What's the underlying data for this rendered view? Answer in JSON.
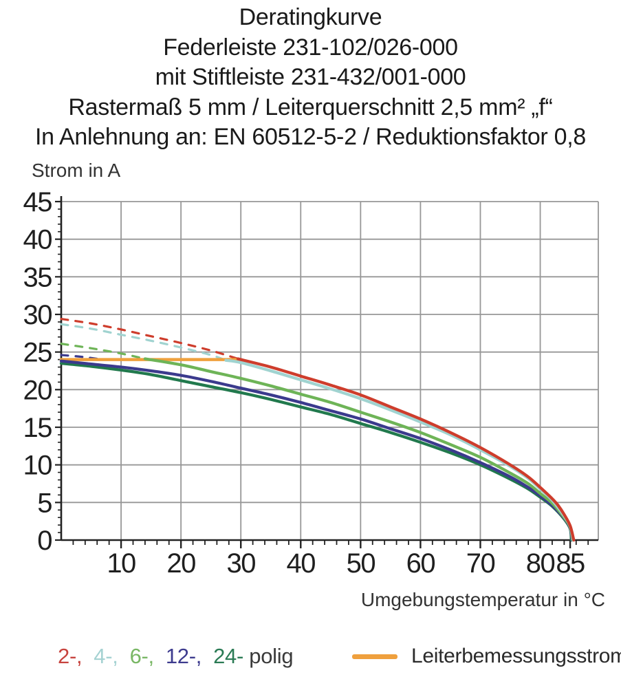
{
  "title": {
    "lines": [
      "Deratingkurve",
      "Federleiste 231-102/026-000",
      "mit Stiftleiste 231-432/001-000",
      "Rastermaß 5 mm / Leiterquerschnitt 2,5 mm² „f“",
      "In Anlehnung an: EN 60512-5-2 / Reduktionsfaktor 0,8"
    ]
  },
  "chart_data": {
    "type": "line",
    "ylabel": "Strom in A",
    "xlabel": "Umgebungstemperatur in °C",
    "xlim": [
      0,
      89.7
    ],
    "ylim": [
      0,
      45
    ],
    "x_ticks": [
      10,
      20,
      30,
      40,
      50,
      60,
      70,
      80,
      85
    ],
    "x_gridlines": [
      10,
      20,
      30,
      40,
      50,
      60,
      70,
      80
    ],
    "x_minor_step": 2,
    "y_ticks": [
      0,
      5,
      10,
      15,
      20,
      25,
      30,
      35,
      40,
      45
    ],
    "y_gridlines": [
      5,
      10,
      15,
      20,
      25,
      30,
      35,
      40,
      45
    ],
    "y_minor_step": 1,
    "grid_color": "#979797",
    "axis_color": "#222222",
    "reference_line": {
      "name": "Leiterbemessungsstrom",
      "color": "#efa03d",
      "current_a": 24,
      "points": [
        [
          0,
          24
        ],
        [
          29.5,
          24
        ]
      ]
    },
    "series": [
      {
        "name": "24-polig",
        "color": "#21794d",
        "solid": [
          [
            0,
            23.5
          ],
          [
            5,
            23.1
          ],
          [
            10,
            22.6
          ],
          [
            15,
            22.0
          ],
          [
            20,
            21.2
          ],
          [
            25,
            20.4
          ],
          [
            30,
            19.6
          ],
          [
            35,
            18.7
          ],
          [
            40,
            17.7
          ],
          [
            45,
            16.7
          ],
          [
            50,
            15.5
          ],
          [
            55,
            14.3
          ],
          [
            60,
            13.0
          ],
          [
            65,
            11.6
          ],
          [
            70,
            10.0
          ],
          [
            75,
            8.1
          ],
          [
            78,
            6.8
          ],
          [
            80,
            5.7
          ],
          [
            82,
            4.5
          ],
          [
            84,
            2.8
          ],
          [
            85,
            1.5
          ],
          [
            85.2,
            0
          ]
        ]
      },
      {
        "name": "12-polig",
        "color": "#3b3a8d",
        "dashed": [
          [
            0,
            24.6
          ],
          [
            3,
            24.4
          ],
          [
            6,
            24.1
          ]
        ],
        "solid": [
          [
            0,
            23.8
          ],
          [
            5,
            23.4
          ],
          [
            10,
            23.0
          ],
          [
            15,
            22.5
          ],
          [
            20,
            21.9
          ],
          [
            25,
            21.1
          ],
          [
            30,
            20.2
          ],
          [
            35,
            19.3
          ],
          [
            40,
            18.3
          ],
          [
            45,
            17.2
          ],
          [
            50,
            16.1
          ],
          [
            55,
            14.8
          ],
          [
            60,
            13.5
          ],
          [
            65,
            12.0
          ],
          [
            70,
            10.3
          ],
          [
            75,
            8.4
          ],
          [
            78,
            7.0
          ],
          [
            80,
            5.9
          ],
          [
            82,
            4.6
          ],
          [
            84,
            2.9
          ],
          [
            85,
            1.6
          ],
          [
            85.3,
            0
          ]
        ]
      },
      {
        "name": "6-polig",
        "color": "#6eb457",
        "dashed": [
          [
            0,
            26.1
          ],
          [
            5,
            25.5
          ],
          [
            10,
            24.8
          ],
          [
            14,
            24.1
          ]
        ],
        "solid": [
          [
            14,
            24.1
          ],
          [
            20,
            23.3
          ],
          [
            25,
            22.4
          ],
          [
            30,
            21.5
          ],
          [
            35,
            20.5
          ],
          [
            40,
            19.4
          ],
          [
            45,
            18.3
          ],
          [
            50,
            17.0
          ],
          [
            55,
            15.7
          ],
          [
            60,
            14.3
          ],
          [
            65,
            12.7
          ],
          [
            70,
            11.0
          ],
          [
            75,
            8.9
          ],
          [
            78,
            7.5
          ],
          [
            80,
            6.2
          ],
          [
            82,
            4.9
          ],
          [
            84,
            3.0
          ],
          [
            85,
            1.7
          ],
          [
            85.4,
            0
          ]
        ]
      },
      {
        "name": "4-polig",
        "color": "#a0d3d0",
        "dashed": [
          [
            0,
            28.7
          ],
          [
            5,
            28.1
          ],
          [
            10,
            27.3
          ],
          [
            15,
            26.5
          ],
          [
            20,
            25.6
          ],
          [
            25,
            24.6
          ],
          [
            27.5,
            23.9
          ]
        ],
        "solid": [
          [
            27.5,
            23.9
          ],
          [
            30,
            23.6
          ],
          [
            35,
            22.5
          ],
          [
            40,
            21.3
          ],
          [
            45,
            20.1
          ],
          [
            50,
            18.8
          ],
          [
            55,
            17.3
          ],
          [
            60,
            15.7
          ],
          [
            65,
            14.0
          ],
          [
            70,
            12.0
          ],
          [
            75,
            9.8
          ],
          [
            78,
            8.2
          ],
          [
            80,
            6.8
          ],
          [
            82,
            5.3
          ],
          [
            84,
            3.2
          ],
          [
            85,
            1.8
          ],
          [
            85.5,
            0
          ]
        ]
      },
      {
        "name": "2-polig",
        "color": "#ce3d2c",
        "dashed": [
          [
            0,
            29.4
          ],
          [
            5,
            28.8
          ],
          [
            10,
            28.0
          ],
          [
            15,
            27.1
          ],
          [
            20,
            26.2
          ],
          [
            25,
            25.2
          ],
          [
            29.5,
            24.1
          ]
        ],
        "solid": [
          [
            29.5,
            24.1
          ],
          [
            35,
            23.0
          ],
          [
            40,
            21.8
          ],
          [
            45,
            20.6
          ],
          [
            50,
            19.3
          ],
          [
            55,
            17.7
          ],
          [
            60,
            16.1
          ],
          [
            65,
            14.3
          ],
          [
            70,
            12.3
          ],
          [
            75,
            10.0
          ],
          [
            78,
            8.4
          ],
          [
            80,
            7.0
          ],
          [
            82,
            5.5
          ],
          [
            83,
            4.6
          ],
          [
            84,
            3.4
          ],
          [
            85,
            1.9
          ],
          [
            85.6,
            0
          ]
        ]
      }
    ]
  },
  "legend": {
    "pole_items": [
      {
        "label": "2-,",
        "color": "#c7433e"
      },
      {
        "label": "4-,",
        "color": "#a5d2d2"
      },
      {
        "label": "6-,",
        "color": "#79b765"
      },
      {
        "label": "12-,",
        "color": "#3d3b8e"
      },
      {
        "label": "24-",
        "color": "#2b7b55"
      },
      {
        "label": "polig",
        "color": "#3a3a3a"
      }
    ],
    "reference_label": "Leiterbemessungsstrom"
  }
}
